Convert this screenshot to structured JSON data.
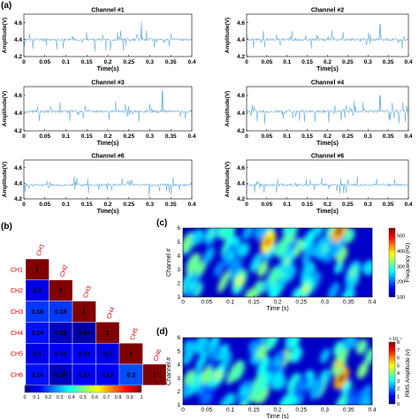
{
  "panel_labels": {
    "a": "(a)",
    "b": "(b)",
    "c": "(c)",
    "d": "(d)"
  },
  "colors": {
    "signal": "#6aaed6",
    "axis": "#000000"
  },
  "chart_data": [
    {
      "type": "line",
      "title": "Channel #1",
      "xlabel": "Time(s)",
      "ylabel": "Amplitude(V)",
      "xlim": [
        0,
        0.4
      ],
      "ylim": [
        4.2,
        4.7
      ],
      "xticks": [
        "0",
        "0.05",
        "0.1",
        "0.15",
        "0.2",
        "0.25",
        "0.3",
        "0.35",
        "0.4"
      ],
      "yticks": [
        "4.2",
        "4.4",
        "4.6"
      ],
      "baseline": 4.4,
      "series": [
        {
          "x": [
            0,
            0.05,
            0.1,
            0.15,
            0.2,
            0.25,
            0.28,
            0.3,
            0.35,
            0.4
          ],
          "values": [
            4.4,
            4.38,
            4.41,
            4.4,
            4.42,
            4.39,
            4.62,
            4.41,
            4.4,
            4.4
          ]
        }
      ]
    },
    {
      "type": "line",
      "title": "Channel #2",
      "xlabel": "Time(s)",
      "ylabel": "Amplitude(V)",
      "xlim": [
        0,
        0.4
      ],
      "ylim": [
        4.2,
        4.7
      ],
      "xticks": [
        "0",
        "0.05",
        "0.1",
        "0.15",
        "0.2",
        "0.25",
        "0.3",
        "0.35",
        "0.4"
      ],
      "yticks": [
        "4.2",
        "4.4",
        "4.6"
      ],
      "baseline": 4.4,
      "series": [
        {
          "x": [
            0,
            0.05,
            0.1,
            0.15,
            0.2,
            0.25,
            0.3,
            0.33,
            0.35,
            0.4
          ],
          "values": [
            4.4,
            4.39,
            4.41,
            4.4,
            4.4,
            4.41,
            4.42,
            4.58,
            4.4,
            4.4
          ]
        }
      ]
    },
    {
      "type": "line",
      "title": "Channel #3",
      "xlabel": "Time(s)",
      "ylabel": "Amplitude(V)",
      "xlim": [
        0,
        0.4
      ],
      "ylim": [
        4.2,
        4.7
      ],
      "xticks": [
        "0",
        "0.05",
        "0.1",
        "0.15",
        "0.2",
        "0.25",
        "0.3",
        "0.35",
        "0.4"
      ],
      "yticks": [
        "4.2",
        "4.4",
        "4.6"
      ],
      "baseline": 4.42,
      "series": [
        {
          "x": [
            0,
            0.05,
            0.1,
            0.15,
            0.2,
            0.25,
            0.3,
            0.33,
            0.35,
            0.4
          ],
          "values": [
            4.42,
            4.4,
            4.44,
            4.43,
            4.45,
            4.42,
            4.5,
            4.65,
            4.43,
            4.42
          ]
        }
      ]
    },
    {
      "type": "line",
      "title": "Channel #4",
      "xlabel": "Time(s)",
      "ylabel": "Amplitude(V)",
      "xlim": [
        0,
        0.4
      ],
      "ylim": [
        4.2,
        4.7
      ],
      "xticks": [
        "0",
        "0.05",
        "0.1",
        "0.15",
        "0.2",
        "0.25",
        "0.3",
        "0.35",
        "0.4"
      ],
      "yticks": [
        "4.2",
        "4.4",
        "4.6"
      ],
      "baseline": 4.42,
      "series": [
        {
          "x": [
            0,
            0.05,
            0.1,
            0.15,
            0.2,
            0.25,
            0.3,
            0.33,
            0.35,
            0.4
          ],
          "values": [
            4.42,
            4.43,
            4.41,
            4.44,
            4.43,
            4.5,
            4.45,
            4.6,
            4.44,
            4.42
          ]
        }
      ]
    },
    {
      "type": "line",
      "title": "Channel #6",
      "xlabel": "Time(s)",
      "ylabel": "Amplitude(V)",
      "xlim": [
        0,
        0.4
      ],
      "ylim": [
        4.2,
        4.7
      ],
      "xticks": [
        "0",
        "0.05",
        "0.1",
        "0.15",
        "0.2",
        "0.25",
        "0.3",
        "0.35",
        "0.4"
      ],
      "yticks": [
        "4.2",
        "4.4",
        "4.6"
      ],
      "baseline": 4.38,
      "series": [
        {
          "x": [
            0,
            0.05,
            0.1,
            0.15,
            0.2,
            0.25,
            0.3,
            0.35,
            0.4
          ],
          "values": [
            4.38,
            4.42,
            4.4,
            4.45,
            4.39,
            4.41,
            4.4,
            4.39,
            4.38
          ]
        }
      ]
    },
    {
      "type": "line",
      "title": "Channel #6",
      "xlabel": "Time(s)",
      "ylabel": "Amplitude(V)",
      "xlim": [
        0,
        0.4
      ],
      "ylim": [
        4.2,
        4.7
      ],
      "xticks": [
        "0",
        "0.05",
        "0.1",
        "0.15",
        "0.2",
        "0.25",
        "0.3",
        "0.35",
        "0.4"
      ],
      "yticks": [
        "4.2",
        "4.4",
        "4.6"
      ],
      "baseline": 4.38,
      "series": [
        {
          "x": [
            0,
            0.05,
            0.1,
            0.15,
            0.2,
            0.25,
            0.3,
            0.35,
            0.4
          ],
          "values": [
            4.38,
            4.4,
            4.39,
            4.42,
            4.4,
            4.41,
            4.39,
            4.4,
            4.38
          ]
        }
      ]
    },
    {
      "type": "heatmap",
      "categories": [
        "CH1",
        "CH2",
        "CH3",
        "CH4",
        "CH5",
        "CH6"
      ],
      "matrix": [
        [
          1,
          null,
          null,
          null,
          null,
          null
        ],
        [
          0.1,
          1,
          null,
          null,
          null,
          null
        ],
        [
          0.18,
          0.18,
          1,
          null,
          null,
          null
        ],
        [
          0.14,
          0.06,
          0.04,
          1,
          null,
          null
        ],
        [
          0.1,
          0.12,
          0.12,
          0.1,
          1,
          null
        ],
        [
          0.14,
          0.06,
          0.12,
          0.12,
          0.2,
          1
        ]
      ],
      "cell_labels": [
        [
          "1",
          "",
          "",
          "",
          "",
          ""
        ],
        [
          "0.1",
          "1",
          "",
          "",
          "",
          ""
        ],
        [
          "0.18",
          "0.18",
          "1",
          "",
          "",
          ""
        ],
        [
          "0.14",
          "0.06",
          "0.04",
          "1",
          "",
          ""
        ],
        [
          "0.1",
          "0.12",
          "0.12",
          "0.1",
          "1",
          ""
        ],
        [
          "0.14",
          "0.06",
          "0.12",
          "0.12",
          "0.2",
          "1"
        ]
      ],
      "colorbar": {
        "min": 0,
        "max": 1,
        "ticks": [
          "0",
          "0.1",
          "0.2",
          "0.3",
          "0.4",
          "0.5",
          "0.6",
          "0.7",
          "0.8",
          "0.9",
          "1"
        ]
      }
    },
    {
      "type": "heatmap",
      "xlabel": "Time (s)",
      "ylabel": "Channel #",
      "xlim": [
        0,
        0.4
      ],
      "ylim": [
        1,
        6
      ],
      "xticks": [
        "0",
        "0.05",
        "0.1",
        "0.15",
        "0.2",
        "0.25",
        "0.3",
        "0.35",
        "0.4"
      ],
      "yticks": [
        "1",
        "2",
        "3",
        "4",
        "5",
        "6"
      ],
      "colorbar": {
        "label": "Frequency (Hz)",
        "min": 100,
        "max": 550,
        "ticks": [
          "100",
          "200",
          "300",
          "400",
          "500"
        ]
      },
      "hotspots": [
        {
          "t": 0.33,
          "ch": 5.8,
          "v": 550
        },
        {
          "t": 0.18,
          "ch": 5.0,
          "v": 500
        },
        {
          "t": 0.12,
          "ch": 2.2,
          "v": 380
        },
        {
          "t": 0.26,
          "ch": 1.6,
          "v": 360
        },
        {
          "t": 0.36,
          "ch": 2.8,
          "v": 320
        },
        {
          "t": 0.06,
          "ch": 5.6,
          "v": 300
        },
        {
          "t": 0.22,
          "ch": 3.6,
          "v": 320
        },
        {
          "t": 0.02,
          "ch": 1.8,
          "v": 280
        },
        {
          "t": 0.1,
          "ch": 4.0,
          "v": 260
        },
        {
          "t": 0.3,
          "ch": 4.5,
          "v": 300
        }
      ]
    },
    {
      "type": "heatmap",
      "xlabel": "Time (s)",
      "ylabel": "Channel #",
      "xlim": [
        0,
        0.4
      ],
      "ylim": [
        1,
        6
      ],
      "xticks": [
        "0",
        "0.05",
        "0.1",
        "0.15",
        "0.2",
        "0.25",
        "0.3",
        "0.35",
        "0.4"
      ],
      "yticks": [
        "1",
        "2",
        "3",
        "4",
        "5",
        "6"
      ],
      "colorbar": {
        "label": "RMS Amplitude (v)",
        "exponent": "× 10⁻⁴",
        "min": 0,
        "max": 8,
        "ticks": [
          "0",
          "1",
          "2",
          "3",
          "4",
          "5",
          "6",
          "7",
          "8"
        ]
      },
      "hotspots": [
        {
          "t": 0.335,
          "ch": 3.0,
          "v": 8
        },
        {
          "t": 0.33,
          "ch": 4.0,
          "v": 5.5
        },
        {
          "t": 0.075,
          "ch": 3.2,
          "v": 4.5
        },
        {
          "t": 0.13,
          "ch": 2.0,
          "v": 3
        },
        {
          "t": 0.2,
          "ch": 4.2,
          "v": 2.6
        },
        {
          "t": 0.25,
          "ch": 2.4,
          "v": 2.2
        },
        {
          "t": 0.05,
          "ch": 1.5,
          "v": 2
        },
        {
          "t": 0.36,
          "ch": 1.3,
          "v": 2
        }
      ]
    }
  ]
}
